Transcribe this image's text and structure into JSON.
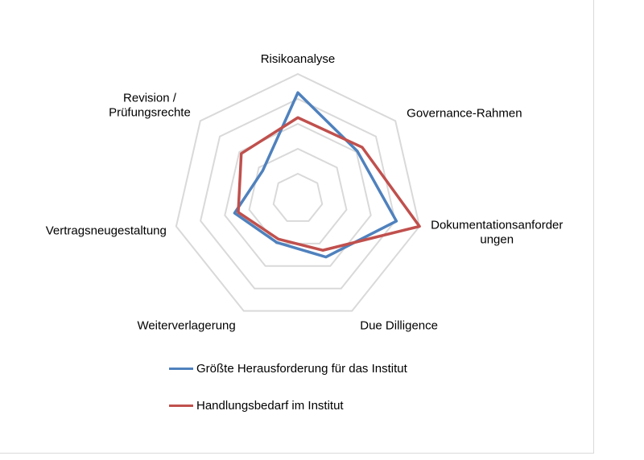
{
  "chart_data": {
    "type": "radar",
    "axes": [
      {
        "label_lines": [
          "Risikoanalyse"
        ]
      },
      {
        "label_lines": [
          "Governance-Rahmen"
        ]
      },
      {
        "label_lines": [
          "Dokumentationsanforder",
          "ungen"
        ]
      },
      {
        "label_lines": [
          "Due Dilligence"
        ]
      },
      {
        "label_lines": [
          "Weiterverlagerung"
        ]
      },
      {
        "label_lines": [
          "Vertragsneugestaltung"
        ]
      },
      {
        "label_lines": [
          "Revision /",
          "Prüfungsrechte"
        ]
      }
    ],
    "rings": 5,
    "series": [
      {
        "name": "Größte Herausforderung für das Institut",
        "color": "#4f81bd",
        "values": [
          0.85,
          0.61,
          0.81,
          0.52,
          0.39,
          0.52,
          0.36
        ]
      },
      {
        "name": "Handlungsbedarf im Institut",
        "color": "#c0504d",
        "values": [
          0.65,
          0.66,
          1.0,
          0.46,
          0.36,
          0.49,
          0.58
        ]
      }
    ],
    "grid_color": "#d9d9d9",
    "legend_position": "bottom"
  }
}
